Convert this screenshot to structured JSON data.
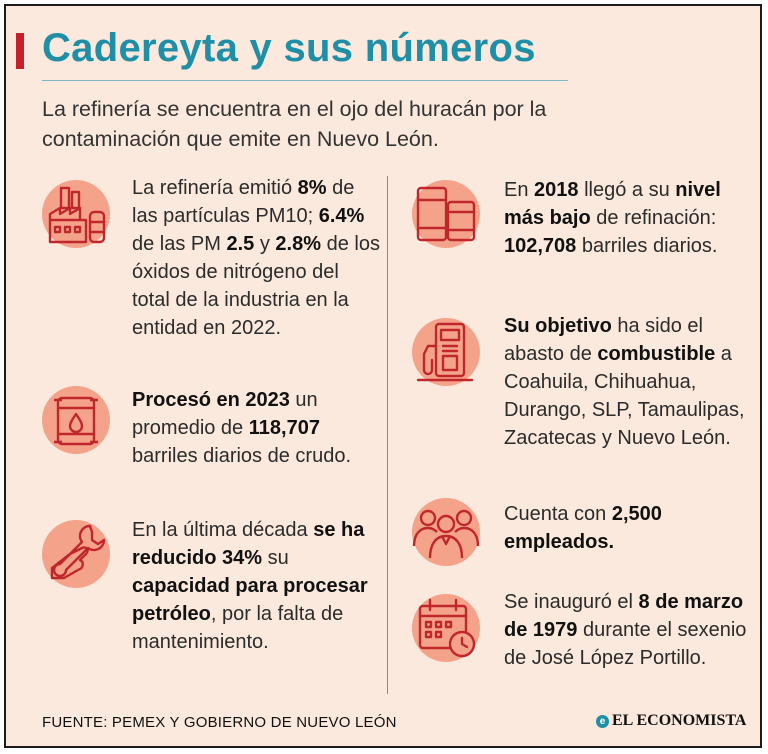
{
  "header": {
    "title": "Cadereyta y sus números",
    "subtitle": "La refinería se encuentra en el ojo del huracán por la contaminación que emite en Nuevo León."
  },
  "items": {
    "emissions": {
      "t1": "La refinería emitió ",
      "b1": "8%",
      "t2": " de las partículas PM10; ",
      "b2": "6.4%",
      "t3": " de las PM ",
      "b3": "2.5",
      "t4": " y ",
      "b4": "2.8%",
      "t5": " de los óxidos de nitrógeno del total de la industria en la entidad en 2022."
    },
    "processed": {
      "b1": "Procesó en 2023",
      "t1": " un promedio de ",
      "b2": "118,707",
      "t2": " barriles diarios de crudo."
    },
    "capacity": {
      "t1": "En la última década ",
      "b1": "se ha reducido 34%",
      "t2": " su ",
      "b2": "capacidad para procesar petróleo",
      "t3": ", por la falta de mantenimiento."
    },
    "lowest": {
      "t1": "En ",
      "b1": "2018",
      "t2": " llegó a su ",
      "b2": "nivel más bajo",
      "t3": " de refinación: ",
      "b3": "102,708",
      "t4": " barriles diarios."
    },
    "objective": {
      "b1": "Su objetivo",
      "t1": " ha sido el abasto de ",
      "b2": "combustible",
      "t2": " a Coahuila, Chihuahua, Durango, SLP, Tamaulipas, Zacatecas y Nuevo León."
    },
    "employees": {
      "t1": "Cuenta con ",
      "b1": "2,500",
      "t2": " ",
      "b2": "empleados."
    },
    "inauguration": {
      "t1": "Se inauguró el ",
      "b1": "8 de marzo de 1979",
      "t2": " durante el sexenio de José López Portillo."
    }
  },
  "footer": {
    "source": "FUENTE: PEMEX Y GOBIERNO DE NUEVO LEÓN",
    "logo": "EL ECONOMISTA",
    "logo_mark": "e"
  },
  "icons": [
    "factory-icon",
    "oil-barrel-icon",
    "wrench-hand-icon",
    "barrels-icon",
    "fuel-pump-icon",
    "employees-icon",
    "calendar-clock-icon"
  ],
  "colors": {
    "background": "#fbe9dd",
    "accent": "#1e8fa6",
    "red": "#c8202a",
    "icon_circle": "#f4a38a",
    "icon_stroke": "#c0272d"
  }
}
